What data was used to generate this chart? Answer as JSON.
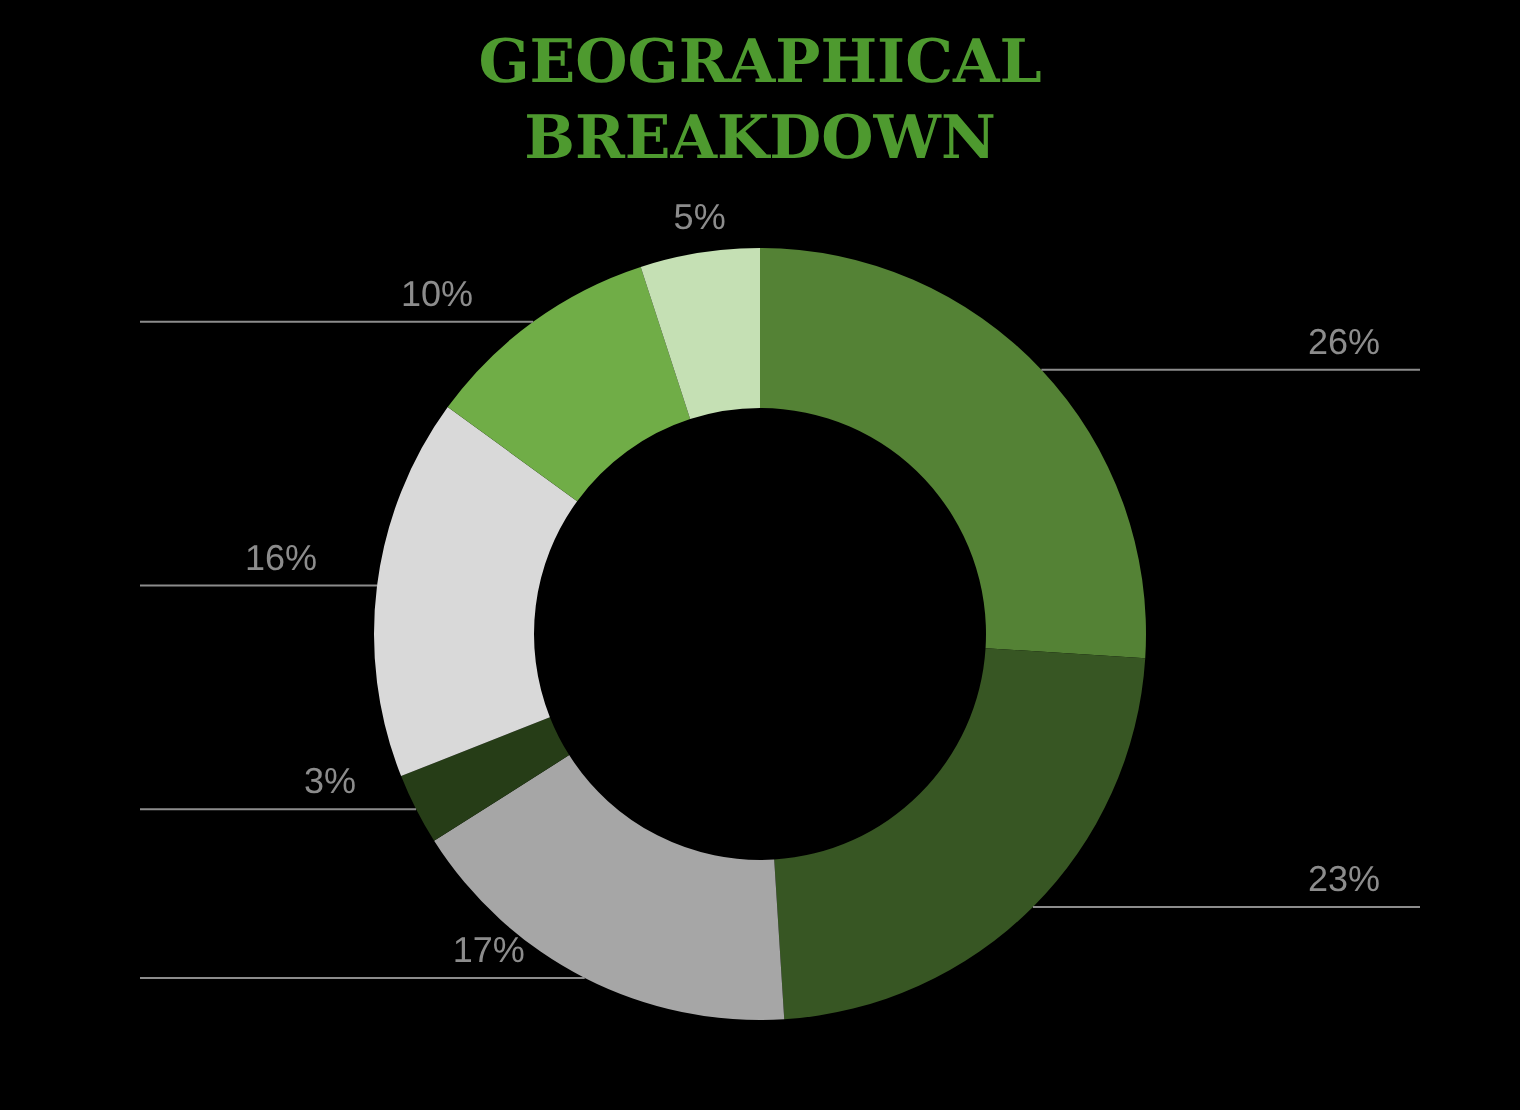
{
  "chart_data": {
    "type": "donut",
    "title": "GEOGRAPHICAL\nBREAKDOWN",
    "categories": [
      null,
      null,
      null,
      null,
      null,
      null,
      null
    ],
    "values": [
      26,
      23,
      17,
      3,
      16,
      10,
      5
    ],
    "colors": [
      "#548235",
      "#375623",
      "#a6a6a6",
      "#263d17",
      "#d9d9d9",
      "#70ad47",
      "#c5e0b4"
    ],
    "value_labels": [
      "26%",
      "23%",
      "17%",
      "3%",
      "16%",
      "10%",
      "5%"
    ]
  }
}
